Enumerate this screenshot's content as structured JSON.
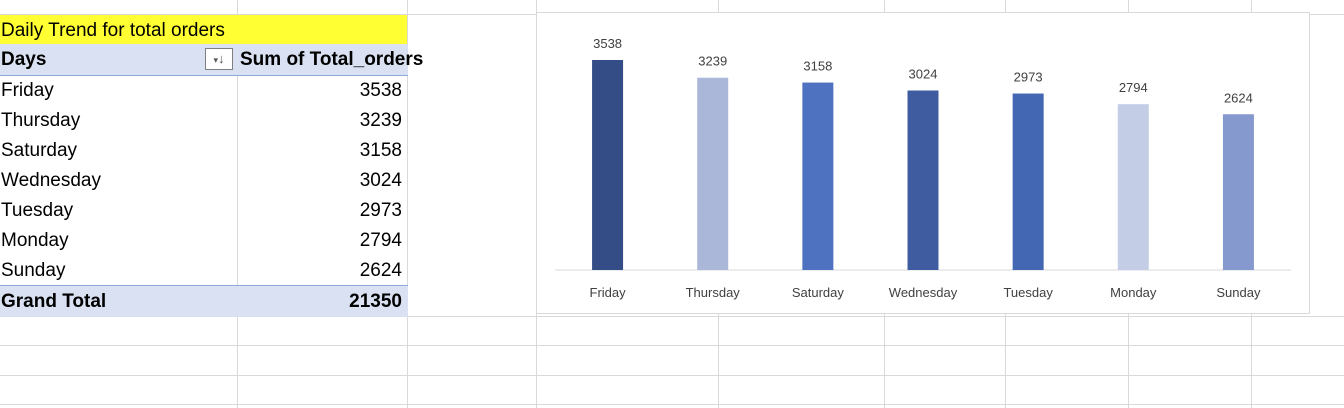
{
  "pivot": {
    "title": "Daily Trend for total orders",
    "header_days": "Days",
    "filter_icon": "↓",
    "header_sum": "Sum of Total_orders",
    "rows": [
      {
        "day": "Friday",
        "value": "3538"
      },
      {
        "day": "Thursday",
        "value": "3239"
      },
      {
        "day": "Saturday",
        "value": "3158"
      },
      {
        "day": "Wednesday",
        "value": "3024"
      },
      {
        "day": "Tuesday",
        "value": "2973"
      },
      {
        "day": "Monday",
        "value": "2794"
      },
      {
        "day": "Sunday",
        "value": "2624"
      }
    ],
    "total_label": "Grand Total",
    "total_value": "21350"
  },
  "chart_data": {
    "type": "bar",
    "categories": [
      "Friday",
      "Thursday",
      "Saturday",
      "Wednesday",
      "Tuesday",
      "Monday",
      "Sunday"
    ],
    "values": [
      3538,
      3239,
      3158,
      3024,
      2973,
      2794,
      2624
    ],
    "colors": [
      "#344d86",
      "#aab7d8",
      "#4f72c0",
      "#3e5c9f",
      "#4467b3",
      "#c4cde6",
      "#8699cf"
    ],
    "title": "",
    "xlabel": "",
    "ylabel": "",
    "ylim": [
      0,
      4000
    ],
    "grid": false,
    "legend": "none"
  }
}
